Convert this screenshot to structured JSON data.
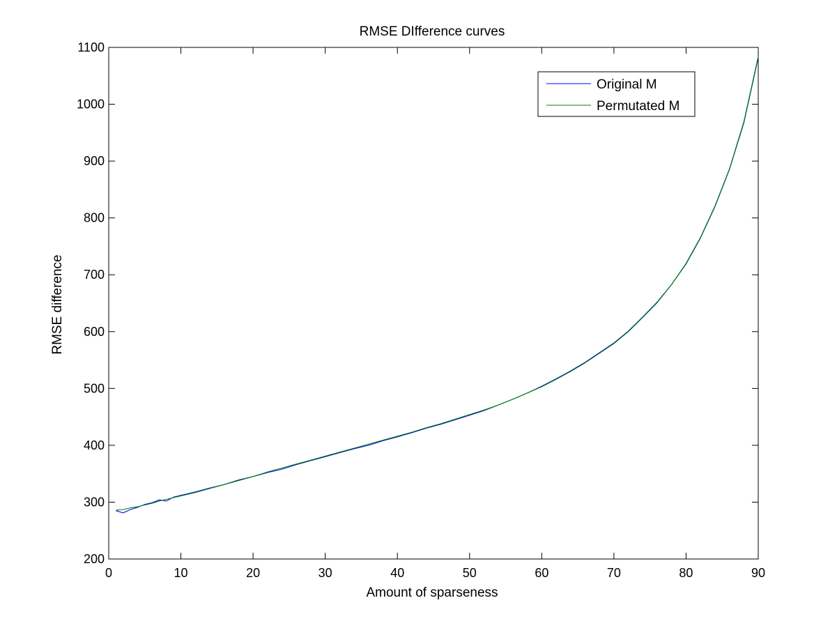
{
  "chart_data": {
    "type": "line",
    "title": "RMSE DIfference curves",
    "xlabel": "Amount of sparseness",
    "ylabel": "RMSE difference",
    "xlim": [
      0,
      90
    ],
    "ylim": [
      200,
      1100
    ],
    "xticks": [
      0,
      10,
      20,
      30,
      40,
      50,
      60,
      70,
      80,
      90
    ],
    "yticks": [
      200,
      300,
      400,
      500,
      600,
      700,
      800,
      900,
      1000,
      1100
    ],
    "grid": false,
    "legend_position": "top-right",
    "series": [
      {
        "name": "Original M",
        "color": "#0000ff",
        "x": [
          1,
          2,
          3,
          4,
          5,
          6,
          7,
          8,
          9,
          10,
          12,
          14,
          16,
          18,
          20,
          22,
          24,
          26,
          28,
          30,
          32,
          34,
          36,
          38,
          40,
          42,
          44,
          46,
          48,
          50,
          52,
          54,
          56,
          58,
          60,
          62,
          64,
          66,
          68,
          70,
          72,
          74,
          76,
          78,
          80,
          82,
          84,
          86,
          88,
          90
        ],
        "y": [
          285,
          281,
          287,
          291,
          296,
          299,
          304,
          302,
          309,
          312,
          318,
          325,
          331,
          339,
          345,
          352,
          358,
          366,
          373,
          380,
          387,
          394,
          400,
          408,
          415,
          422,
          430,
          437,
          445,
          453,
          461,
          471,
          481,
          492,
          504,
          517,
          531,
          546,
          563,
          580,
          601,
          626,
          652,
          683,
          719,
          765,
          820,
          885,
          967,
          1082
        ]
      },
      {
        "name": "Permutated M",
        "color": "#008000",
        "x": [
          1,
          2,
          3,
          4,
          5,
          6,
          7,
          8,
          9,
          10,
          12,
          14,
          16,
          18,
          20,
          22,
          24,
          26,
          28,
          30,
          32,
          34,
          36,
          38,
          40,
          42,
          44,
          46,
          48,
          50,
          52,
          54,
          56,
          58,
          60,
          62,
          64,
          66,
          68,
          70,
          72,
          74,
          76,
          78,
          80,
          82,
          84,
          86,
          88,
          90
        ],
        "y": [
          286,
          287,
          290,
          292,
          295,
          298,
          302,
          305,
          308,
          311,
          317,
          324,
          331,
          338,
          345,
          353,
          360,
          367,
          374,
          381,
          388,
          395,
          402,
          409,
          416,
          423,
          431,
          438,
          446,
          454,
          462,
          471,
          481,
          492,
          503,
          516,
          530,
          545,
          562,
          579,
          600,
          625,
          651,
          683,
          720,
          766,
          821,
          886,
          969,
          1084
        ]
      }
    ]
  }
}
